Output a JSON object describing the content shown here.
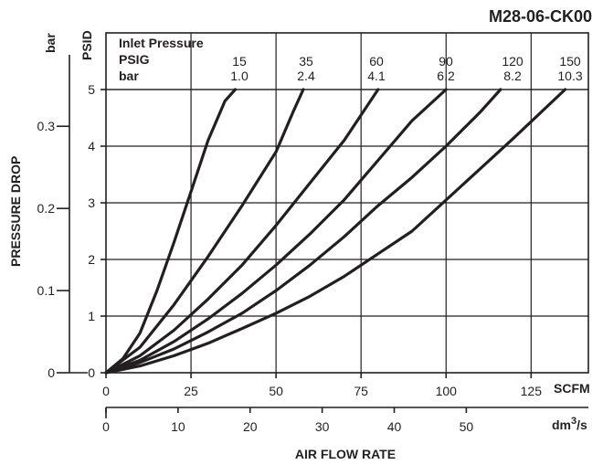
{
  "chart_data": {
    "type": "line",
    "title": "M28-06-CK00",
    "ylabel": "PRESSURE DROP",
    "xlabel": "AIR FLOW RATE",
    "y_unit_primary": "PSID",
    "y_unit_secondary": "bar",
    "x_unit_primary": "SCFM",
    "x_unit_secondary": "dm3/s",
    "ylim": [
      0,
      5
    ],
    "xlim": [
      0,
      130
    ],
    "y_ticks_primary": [
      "0",
      "1",
      "2",
      "3",
      "4",
      "5"
    ],
    "y_ticks_secondary": [
      "0",
      "0.1",
      "0.2",
      "0.3"
    ],
    "x_ticks_primary": [
      "0",
      "25",
      "50",
      "75",
      "100",
      "125"
    ],
    "x_ticks_secondary": [
      "0",
      "10",
      "20",
      "30",
      "40",
      "50"
    ],
    "legend_header": {
      "title": "Inlet Pressure",
      "row1_label": "PSIG",
      "row2_label": "bar"
    },
    "grid": true,
    "series": [
      {
        "name": "15",
        "psig": "15",
        "bar": "1.0",
        "x": [
          0,
          5,
          10,
          15,
          20,
          25,
          30,
          35,
          38
        ],
        "y": [
          0,
          0.25,
          0.7,
          1.45,
          2.3,
          3.2,
          4.1,
          4.8,
          5.0
        ]
      },
      {
        "name": "35",
        "psig": "35",
        "bar": "2.4",
        "x": [
          0,
          10,
          20,
          30,
          40,
          50,
          55,
          58
        ],
        "y": [
          0,
          0.45,
          1.2,
          2.05,
          2.95,
          3.9,
          4.6,
          5.0
        ]
      },
      {
        "name": "60",
        "psig": "60",
        "bar": "4.1",
        "x": [
          0,
          10,
          20,
          30,
          40,
          50,
          60,
          70,
          80
        ],
        "y": [
          0,
          0.3,
          0.75,
          1.3,
          1.9,
          2.6,
          3.35,
          4.1,
          5.0
        ]
      },
      {
        "name": "90",
        "psig": "90",
        "bar": "6.2",
        "x": [
          0,
          10,
          20,
          30,
          40,
          50,
          60,
          70,
          80,
          90,
          100
        ],
        "y": [
          0,
          0.22,
          0.55,
          0.95,
          1.4,
          1.9,
          2.45,
          3.05,
          3.75,
          4.45,
          5.0
        ]
      },
      {
        "name": "120",
        "psig": "120",
        "bar": "8.2",
        "x": [
          0,
          10,
          20,
          30,
          40,
          50,
          60,
          70,
          80,
          90,
          100,
          110,
          116
        ],
        "y": [
          0,
          0.18,
          0.42,
          0.72,
          1.05,
          1.45,
          1.9,
          2.4,
          2.95,
          3.45,
          4.0,
          4.6,
          5.0
        ]
      },
      {
        "name": "150",
        "psig": "150",
        "bar": "10.3",
        "x": [
          0,
          10,
          20,
          30,
          40,
          50,
          60,
          70,
          80,
          90,
          100,
          110,
          120,
          135
        ],
        "y": [
          0,
          0.12,
          0.3,
          0.52,
          0.78,
          1.05,
          1.35,
          1.7,
          2.1,
          2.5,
          3.05,
          3.6,
          4.15,
          5.0
        ]
      }
    ]
  }
}
